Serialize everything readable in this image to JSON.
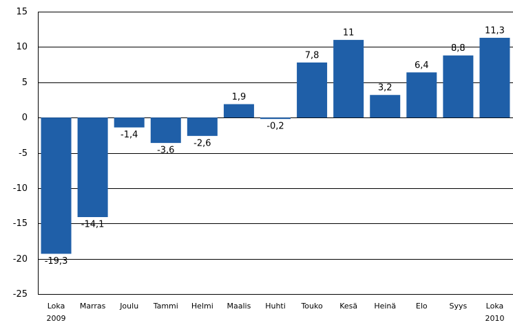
{
  "chart_data": {
    "type": "bar",
    "categories": [
      "Loka",
      "Marras",
      "Joulu",
      "Tammi",
      "Helmi",
      "Maalis",
      "Huhti",
      "Touko",
      "Kesä",
      "Heinä",
      "Elo",
      "Syys",
      "Loka"
    ],
    "category_years": [
      "2009",
      null,
      null,
      null,
      null,
      null,
      null,
      null,
      null,
      null,
      null,
      null,
      "2010"
    ],
    "values": [
      -19.3,
      -14.1,
      -1.4,
      -3.6,
      -2.6,
      1.9,
      -0.2,
      7.8,
      11,
      3.2,
      6.4,
      8.8,
      11.3
    ],
    "value_labels": [
      "-19,3",
      "-14,1",
      "-1,4",
      "-3,6",
      "-2,6",
      "1,9",
      "-0,2",
      "7,8",
      "11",
      "3,2",
      "6,4",
      "8,8",
      "11,3"
    ],
    "color": "#1f5fa8",
    "ylim": [
      -25,
      15
    ],
    "yticks": [
      -25,
      -20,
      -15,
      -10,
      -5,
      0,
      5,
      10,
      15
    ],
    "grid": true
  }
}
